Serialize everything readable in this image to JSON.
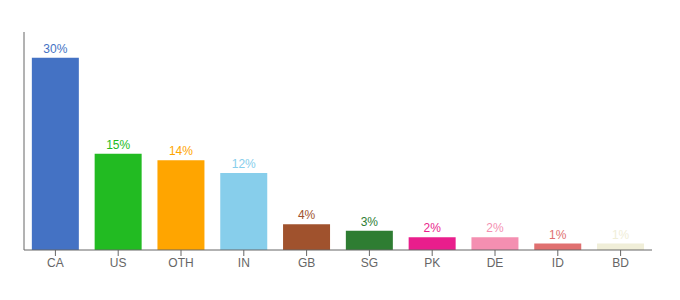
{
  "chart_data": {
    "type": "bar",
    "categories": [
      "CA",
      "US",
      "OTH",
      "IN",
      "GB",
      "SG",
      "PK",
      "DE",
      "ID",
      "BD"
    ],
    "values": [
      30,
      15,
      14,
      12,
      4,
      3,
      2,
      2,
      1,
      1
    ],
    "value_labels": [
      "30%",
      "15%",
      "14%",
      "12%",
      "4%",
      "3%",
      "2%",
      "2%",
      "1%",
      "1%"
    ],
    "colors": [
      "#4472C4",
      "#22BB22",
      "#FFA500",
      "#87CEEB",
      "#A0522D",
      "#2E7D32",
      "#E91E8C",
      "#F48FB1",
      "#E07070",
      "#F0EED8"
    ],
    "ylim": [
      0,
      34
    ],
    "grid": false,
    "tick_labels": "x"
  }
}
